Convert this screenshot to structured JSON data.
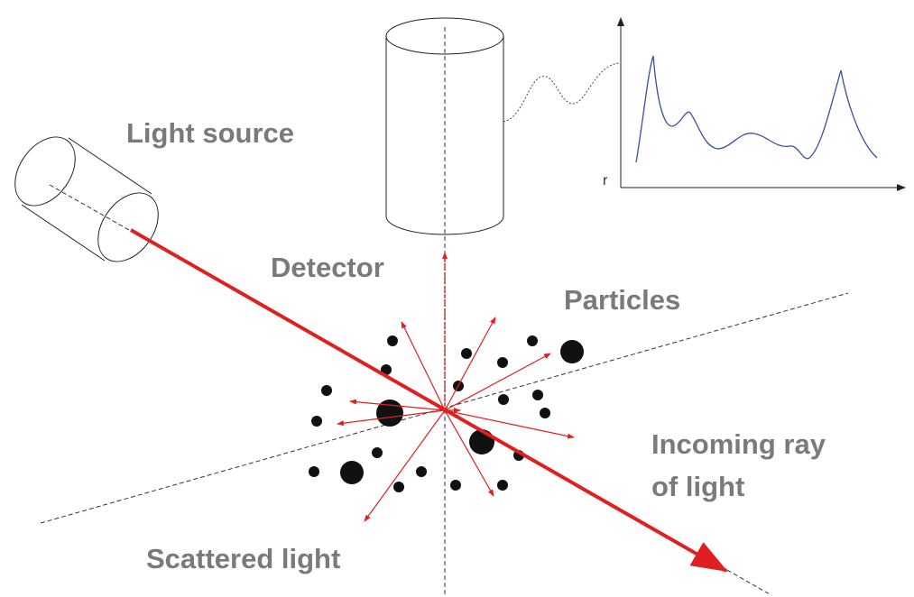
{
  "labels": {
    "light_source": "Light source",
    "detector": "Detector",
    "particles": "Particles",
    "incoming_ray": [
      "Incoming ray",
      "of light"
    ],
    "scattered_light": "Scattered light"
  },
  "graph": {
    "axis_label": "r"
  }
}
